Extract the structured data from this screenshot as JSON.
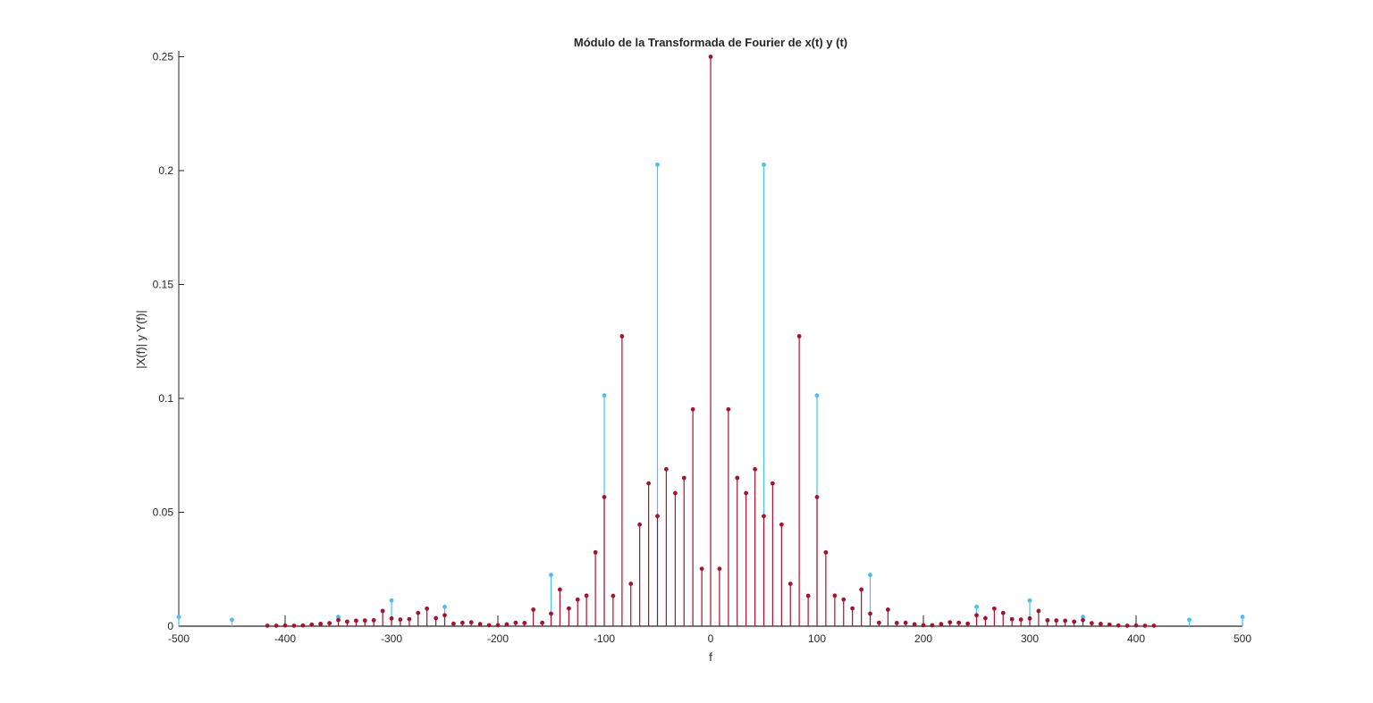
{
  "chart_data": {
    "type": "stem",
    "title": "Módulo de la Transformada de Fourier de x(t) y (t)",
    "xlabel": "f",
    "ylabel": "|X(f)| y Y(f)|",
    "xlim": [
      -500,
      500
    ],
    "ylim": [
      0,
      0.25
    ],
    "xticks": [
      "-500",
      "-400",
      "-300",
      "-200",
      "-100",
      "0",
      "100",
      "200",
      "300",
      "400",
      "500"
    ],
    "yticks": [
      "0",
      "0.05",
      "0.1",
      "0.15",
      "0.2",
      "0.25"
    ],
    "grid": false,
    "colors": {
      "series_1": "#4DBEEE",
      "series_2": "#A2142F",
      "axis": "#262626"
    },
    "series": [
      {
        "color": "#4DBEEE",
        "x": [
          -500,
          -450,
          -350,
          -300,
          -250,
          -150,
          -100,
          -50,
          50,
          100,
          150,
          250,
          300,
          350,
          450,
          500
        ],
        "y": [
          0.0041,
          0.0028,
          0.0041,
          0.0113,
          0.0085,
          0.0225,
          0.1013,
          0.2026,
          0.2026,
          0.1013,
          0.0225,
          0.0085,
          0.0113,
          0.0041,
          0.0028,
          0.0041
        ]
      },
      {
        "color": "#A2142F",
        "x": [
          -416.7,
          -408.3,
          -400,
          -391.7,
          -383.3,
          -375,
          -366.7,
          -358.3,
          -350,
          -341.7,
          -333.3,
          -325,
          -316.7,
          -308.3,
          -300,
          -291.7,
          -283.3,
          -275,
          -266.7,
          -258.3,
          -250,
          -241.7,
          -233.3,
          -225,
          -216.7,
          -208.3,
          -200,
          -191.7,
          -183.3,
          -175,
          -166.7,
          -158.3,
          -150,
          -141.7,
          -133.3,
          -125,
          -116.7,
          -108.3,
          -100,
          -91.7,
          -83.3,
          -75,
          -66.7,
          -58.3,
          -50,
          -41.7,
          -33.3,
          -25,
          -16.7,
          -8.3,
          0,
          8.3,
          16.7,
          25,
          33.3,
          41.7,
          50,
          58.3,
          66.7,
          75,
          83.3,
          91.7,
          100,
          108.3,
          116.7,
          125,
          133.3,
          141.7,
          150,
          158.3,
          166.7,
          175,
          183.3,
          191.7,
          200,
          208.3,
          216.7,
          225,
          233.3,
          241.7,
          250,
          258.3,
          266.7,
          275,
          283.3,
          291.7,
          300,
          308.3,
          316.7,
          325,
          333.3,
          341.7,
          350,
          358.3,
          366.7,
          375,
          383.3,
          391.7,
          400,
          408.3,
          416.7
        ],
        "y": [
          0.0002,
          0.0002,
          0.0003,
          0.0002,
          0.0003,
          0.0007,
          0.001,
          0.0013,
          0.0027,
          0.002,
          0.0024,
          0.0025,
          0.0026,
          0.0067,
          0.0034,
          0.0029,
          0.0031,
          0.0058,
          0.0077,
          0.0035,
          0.0048,
          0.0011,
          0.0015,
          0.0017,
          0.0009,
          0.0004,
          0.0004,
          0.0008,
          0.0015,
          0.0014,
          0.0073,
          0.0015,
          0.0055,
          0.0161,
          0.0078,
          0.0117,
          0.0134,
          0.0324,
          0.0567,
          0.0133,
          0.1273,
          0.0186,
          0.0446,
          0.0627,
          0.0483,
          0.0689,
          0.0584,
          0.0651,
          0.0952,
          0.0252,
          0.25,
          0.0252,
          0.0952,
          0.0651,
          0.0584,
          0.0689,
          0.0483,
          0.0627,
          0.0446,
          0.0186,
          0.1273,
          0.0133,
          0.0567,
          0.0324,
          0.0134,
          0.0117,
          0.0078,
          0.0161,
          0.0055,
          0.0015,
          0.0073,
          0.0014,
          0.0015,
          0.0008,
          0.0004,
          0.0004,
          0.0009,
          0.0017,
          0.0015,
          0.0011,
          0.0048,
          0.0035,
          0.0077,
          0.0058,
          0.0031,
          0.0029,
          0.0034,
          0.0067,
          0.0026,
          0.0025,
          0.0024,
          0.002,
          0.0027,
          0.0013,
          0.001,
          0.0007,
          0.0003,
          0.0002,
          0.0003,
          0.0002,
          0.0002
        ]
      }
    ]
  }
}
